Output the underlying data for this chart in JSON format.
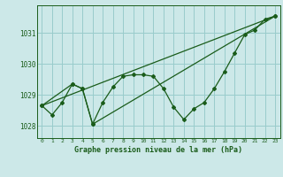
{
  "title": "Graphe pression niveau de la mer (hPa)",
  "background_color": "#cce8e8",
  "grid_color": "#99cccc",
  "line_color": "#1a5c1a",
  "xlim": [
    -0.5,
    23.5
  ],
  "ylim": [
    1027.6,
    1031.9
  ],
  "yticks": [
    1028,
    1029,
    1030,
    1031
  ],
  "xticks": [
    0,
    1,
    2,
    3,
    4,
    5,
    6,
    7,
    8,
    9,
    10,
    11,
    12,
    13,
    14,
    15,
    16,
    17,
    18,
    19,
    20,
    21,
    22,
    23
  ],
  "series1_x": [
    0,
    1,
    2,
    3,
    4,
    5,
    6,
    7,
    8,
    9,
    10,
    11,
    12,
    13,
    14,
    15,
    16,
    17,
    18,
    19,
    20,
    21,
    22,
    23
  ],
  "series1_y": [
    1028.65,
    1028.35,
    1028.75,
    1029.35,
    1029.2,
    1028.05,
    1028.75,
    1029.25,
    1029.6,
    1029.65,
    1029.65,
    1029.6,
    1029.2,
    1028.6,
    1028.2,
    1028.55,
    1028.75,
    1029.2,
    1029.75,
    1030.35,
    1030.95,
    1031.1,
    1031.45,
    1031.55
  ],
  "series2_x": [
    0,
    3,
    4,
    5,
    23
  ],
  "series2_y": [
    1028.65,
    1029.35,
    1029.2,
    1028.05,
    1031.55
  ],
  "series3_x": [
    0,
    23
  ],
  "series3_y": [
    1028.65,
    1031.55
  ],
  "ylabel_fontsize": 5.5,
  "xlabel_fontsize": 4.5,
  "title_fontsize": 6.0
}
